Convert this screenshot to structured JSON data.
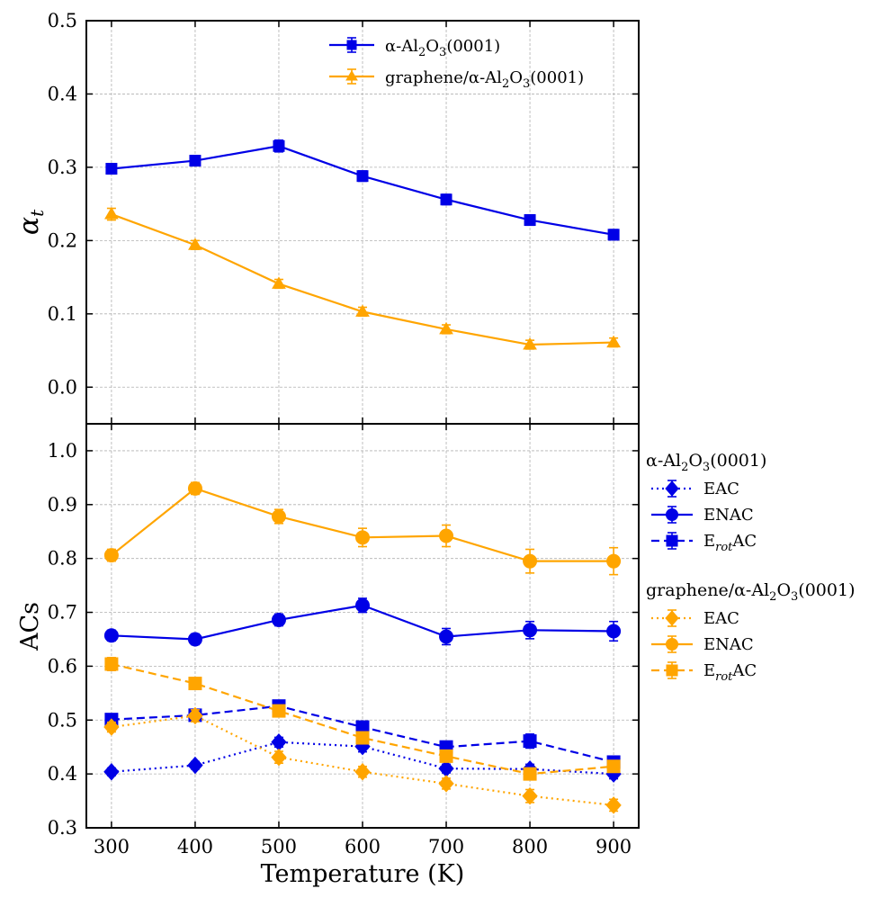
{
  "chart_data": [
    {
      "type": "line",
      "panel": "top",
      "ylabel": "α_t",
      "ylim": [
        -0.05,
        0.5
      ],
      "yticks": [
        "0.0",
        "0.1",
        "0.2",
        "0.3",
        "0.4",
        "0.5"
      ],
      "xlim": [
        270,
        930
      ],
      "x": [
        300,
        400,
        500,
        600,
        700,
        800,
        900
      ],
      "grid": true,
      "legend_position": "top-right",
      "series": [
        {
          "name": "α-Al2O3(0001)",
          "legend_label": {
            "prefix": "α-Al",
            "sub1": "2",
            "mid": "O",
            "sub2": "3",
            "suffix": "(0001)"
          },
          "color": "#0000e6",
          "marker": "square",
          "linestyle": "solid",
          "values": [
            0.298,
            0.309,
            0.329,
            0.288,
            0.256,
            0.228,
            0.208
          ],
          "errors": [
            0.007,
            0.007,
            0.008,
            0.007,
            0.007,
            0.007,
            0.007
          ]
        },
        {
          "name": "graphene/α-Al2O3(0001)",
          "legend_label": {
            "prefix": "graphene/α-Al",
            "sub1": "2",
            "mid": "O",
            "sub2": "3",
            "suffix": "(0001)"
          },
          "color": "#ffa500",
          "marker": "triangle",
          "linestyle": "solid",
          "values": [
            0.236,
            0.194,
            0.141,
            0.103,
            0.079,
            0.058,
            0.061
          ],
          "errors": [
            0.008,
            0.006,
            0.006,
            0.006,
            0.006,
            0.006,
            0.006
          ]
        }
      ]
    },
    {
      "type": "line",
      "panel": "bottom",
      "ylabel": "ACs",
      "xlabel": "Temperature (K)",
      "ylim": [
        0.3,
        1.05
      ],
      "yticks": [
        "0.3",
        "0.4",
        "0.5",
        "0.6",
        "0.7",
        "0.8",
        "0.9",
        "1.0"
      ],
      "xlim": [
        270,
        930
      ],
      "x": [
        300,
        400,
        500,
        600,
        700,
        800,
        900
      ],
      "xticks": [
        "300",
        "400",
        "500",
        "600",
        "700",
        "800",
        "900"
      ],
      "grid": true,
      "legend_position": "outside-right",
      "legend_groups": [
        {
          "title": {
            "prefix": "α-Al",
            "sub1": "2",
            "mid": "O",
            "sub2": "3",
            "suffix": "(0001)"
          },
          "color": "#0000e6",
          "entries": [
            {
              "label": "EAC",
              "sub": "",
              "label_suffix": "",
              "marker": "diamond",
              "linestyle": "dotted"
            },
            {
              "label": "ENAC",
              "sub": "",
              "label_suffix": "",
              "marker": "circle",
              "linestyle": "solid"
            },
            {
              "label": "E",
              "sub": "rot",
              "label_suffix": "AC",
              "marker": "square",
              "linestyle": "dashed"
            }
          ]
        },
        {
          "title": {
            "prefix": "graphene/α-Al",
            "sub1": "2",
            "mid": "O",
            "sub2": "3",
            "suffix": "(0001)"
          },
          "color": "#ffa500",
          "entries": [
            {
              "label": "EAC",
              "sub": "",
              "label_suffix": "",
              "marker": "diamond",
              "linestyle": "dotted"
            },
            {
              "label": "ENAC",
              "sub": "",
              "label_suffix": "",
              "marker": "circle",
              "linestyle": "solid"
            },
            {
              "label": "E",
              "sub": "rot",
              "label_suffix": "AC",
              "marker": "square",
              "linestyle": "dashed"
            }
          ]
        }
      ],
      "series": [
        {
          "group": "α-Al2O3(0001)",
          "name": "EAC",
          "color": "#0000e6",
          "marker": "diamond",
          "linestyle": "dotted",
          "values": [
            0.404,
            0.416,
            0.459,
            0.451,
            0.41,
            0.409,
            0.4
          ],
          "errors": [
            0.007,
            0.007,
            0.009,
            0.01,
            0.008,
            0.009,
            0.009
          ]
        },
        {
          "group": "α-Al2O3(0001)",
          "name": "ENAC",
          "color": "#0000e6",
          "marker": "circle",
          "linestyle": "solid",
          "values": [
            0.657,
            0.65,
            0.686,
            0.713,
            0.655,
            0.667,
            0.665
          ],
          "errors": [
            0.01,
            0.01,
            0.011,
            0.013,
            0.015,
            0.016,
            0.018
          ]
        },
        {
          "group": "α-Al2O3(0001)",
          "name": "ErotAC",
          "color": "#0000e6",
          "marker": "square",
          "linestyle": "dashed",
          "values": [
            0.501,
            0.509,
            0.526,
            0.487,
            0.45,
            0.461,
            0.422
          ],
          "errors": [
            0.007,
            0.007,
            0.008,
            0.008,
            0.008,
            0.013,
            0.01
          ]
        },
        {
          "group": "graphene/α-Al2O3(0001)",
          "name": "EAC",
          "color": "#ffa500",
          "marker": "diamond",
          "linestyle": "dotted",
          "values": [
            0.487,
            0.508,
            0.431,
            0.404,
            0.382,
            0.359,
            0.342
          ],
          "errors": [
            0.009,
            0.011,
            0.011,
            0.01,
            0.01,
            0.012,
            0.011
          ]
        },
        {
          "group": "graphene/α-Al2O3(0001)",
          "name": "ENAC",
          "color": "#ffa500",
          "marker": "circle",
          "linestyle": "solid",
          "values": [
            0.806,
            0.93,
            0.878,
            0.839,
            0.842,
            0.795,
            0.795
          ],
          "errors": [
            0.011,
            0.011,
            0.013,
            0.017,
            0.02,
            0.022,
            0.025
          ]
        },
        {
          "group": "graphene/α-Al2O3(0001)",
          "name": "ErotAC",
          "color": "#ffa500",
          "marker": "square",
          "linestyle": "dashed",
          "values": [
            0.604,
            0.568,
            0.517,
            0.467,
            0.433,
            0.4,
            0.414
          ],
          "errors": [
            0.012,
            0.01,
            0.01,
            0.01,
            0.009,
            0.011,
            0.01
          ]
        }
      ]
    }
  ]
}
